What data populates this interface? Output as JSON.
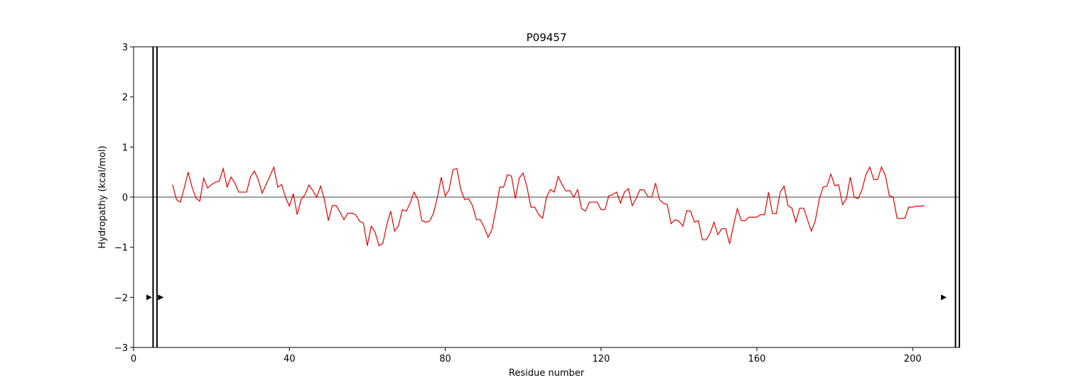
{
  "chart_data": {
    "type": "line",
    "title": "P09457",
    "xlabel": "Residue number",
    "ylabel": "Hydropathy (kcal/mol)",
    "xlim": [
      0,
      212
    ],
    "ylim": [
      -3,
      3
    ],
    "xticks": [
      0,
      40,
      80,
      120,
      160,
      200
    ],
    "yticks": [
      -3,
      -2,
      -1,
      0,
      1,
      2,
      3
    ],
    "grid": false,
    "baseline": 0,
    "line_color": "#e00000",
    "marker_color": "#000000",
    "series": [
      {
        "x": [
          10,
          11,
          12,
          13,
          14,
          15,
          16,
          17,
          18,
          19,
          20,
          21,
          22,
          23,
          24,
          25,
          26,
          27,
          28,
          29,
          30,
          31,
          32,
          33,
          34,
          35,
          36,
          37,
          38,
          39,
          40,
          41,
          42,
          43,
          44,
          45,
          46,
          47,
          48,
          49,
          50,
          51,
          52,
          53,
          54,
          55,
          56,
          57,
          58,
          59,
          60,
          61,
          62,
          63,
          64,
          65,
          66,
          67,
          68,
          69,
          70,
          71,
          72,
          73,
          74,
          75,
          76,
          77,
          78,
          79,
          80,
          81,
          82,
          83,
          84,
          85,
          86,
          87,
          88,
          89,
          90,
          91,
          92,
          93,
          94,
          95,
          96,
          97,
          98,
          99,
          100,
          101,
          102,
          103,
          104,
          105,
          106,
          107,
          108,
          109,
          110,
          111,
          112,
          113,
          114,
          115,
          116,
          117,
          118,
          119,
          120,
          121,
          122,
          123,
          124,
          125,
          126,
          127,
          128,
          129,
          130,
          131,
          132,
          133,
          134,
          135,
          136,
          137,
          138,
          139,
          140,
          141,
          142,
          143,
          144,
          145,
          146,
          147,
          148,
          149,
          150,
          151,
          152,
          153,
          154,
          155,
          156,
          157,
          158,
          159,
          160,
          161,
          162,
          163,
          164,
          165,
          166,
          167,
          168,
          169,
          170,
          171,
          172,
          173,
          174,
          175,
          176,
          177,
          178,
          179,
          180,
          181,
          182,
          183,
          184,
          185,
          186,
          187,
          188,
          189,
          190,
          191,
          192,
          193,
          194,
          195,
          196,
          197,
          198,
          199,
          200,
          201,
          202,
          203
        ],
        "y": [
          0.25,
          -0.05,
          -0.1,
          0.18,
          0.5,
          0.2,
          -0.02,
          -0.08,
          0.38,
          0.18,
          0.25,
          0.3,
          0.32,
          0.57,
          0.2,
          0.4,
          0.28,
          0.1,
          0.1,
          0.1,
          0.4,
          0.52,
          0.35,
          0.08,
          0.25,
          0.42,
          0.6,
          0.2,
          0.25,
          0.0,
          -0.18,
          0.07,
          -0.35,
          -0.05,
          0.05,
          0.24,
          0.13,
          0.0,
          0.22,
          -0.05,
          -0.47,
          -0.17,
          -0.17,
          -0.3,
          -0.45,
          -0.32,
          -0.32,
          -0.35,
          -0.48,
          -0.52,
          -0.97,
          -0.58,
          -0.7,
          -0.97,
          -0.92,
          -0.55,
          -0.28,
          -0.68,
          -0.57,
          -0.25,
          -0.28,
          -0.12,
          0.1,
          -0.05,
          -0.47,
          -0.5,
          -0.48,
          -0.32,
          0.0,
          0.4,
          0.02,
          0.15,
          0.55,
          0.57,
          0.15,
          -0.05,
          -0.03,
          -0.17,
          -0.45,
          -0.45,
          -0.6,
          -0.8,
          -0.65,
          -0.25,
          0.2,
          0.2,
          0.45,
          0.42,
          -0.03,
          0.38,
          0.48,
          0.2,
          -0.2,
          -0.2,
          -0.35,
          -0.42,
          0.0,
          0.15,
          0.1,
          0.41,
          0.25,
          0.12,
          0.13,
          0.0,
          0.15,
          -0.23,
          -0.28,
          -0.1,
          -0.1,
          -0.1,
          -0.25,
          -0.25,
          0.03,
          0.05,
          0.1,
          -0.12,
          0.1,
          0.17,
          -0.17,
          -0.03,
          0.15,
          0.14,
          0.01,
          0.0,
          0.28,
          -0.05,
          -0.12,
          -0.15,
          -0.53,
          -0.45,
          -0.48,
          -0.58,
          -0.27,
          -0.28,
          -0.5,
          -0.47,
          -0.85,
          -0.85,
          -0.72,
          -0.5,
          -0.75,
          -0.63,
          -0.63,
          -0.93,
          -0.57,
          -0.23,
          -0.47,
          -0.47,
          -0.4,
          -0.4,
          -0.4,
          -0.35,
          -0.35,
          0.1,
          -0.33,
          -0.33,
          0.1,
          0.22,
          -0.17,
          -0.22,
          -0.5,
          -0.22,
          -0.22,
          -0.45,
          -0.68,
          -0.47,
          -0.05,
          0.2,
          0.22,
          0.46,
          0.23,
          0.25,
          -0.15,
          -0.03,
          0.4,
          0.0,
          -0.03,
          0.15,
          0.45,
          0.6,
          0.35,
          0.35,
          0.6,
          0.43,
          0.03,
          0.0,
          -0.42,
          -0.43,
          -0.42,
          -0.2,
          -0.2,
          -0.18,
          -0.18,
          -0.17
        ]
      }
    ],
    "boundaries": [
      5,
      6,
      211,
      212
    ],
    "markers": [
      {
        "x": 4,
        "y": -2
      },
      {
        "x": 7,
        "y": -2
      },
      {
        "x": 208,
        "y": -2
      }
    ]
  }
}
